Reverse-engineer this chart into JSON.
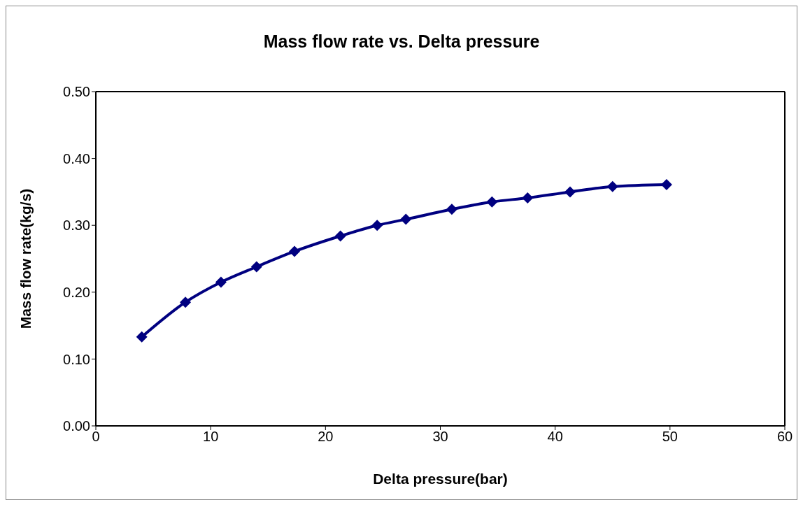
{
  "chart_data": {
    "type": "line",
    "title": "Mass flow rate vs. Delta pressure",
    "xlabel": "Delta pressure(bar)",
    "ylabel": "Mass flow rate(kg/s)",
    "x": [
      4.0,
      7.8,
      10.9,
      14.0,
      17.3,
      21.3,
      24.5,
      27.0,
      31.0,
      34.5,
      37.6,
      41.3,
      45.0,
      49.7
    ],
    "series": [
      {
        "color": "#000080",
        "values": [
          0.133,
          0.185,
          0.215,
          0.238,
          0.261,
          0.284,
          0.3,
          0.309,
          0.324,
          0.335,
          0.341,
          0.35,
          0.358,
          0.361
        ]
      }
    ],
    "xlim": [
      0,
      60
    ],
    "xticks": [
      0,
      10,
      20,
      30,
      40,
      50,
      60
    ],
    "ylim": [
      0,
      0.5
    ],
    "yticks": [
      {
        "value": 0,
        "label": "0.00"
      },
      {
        "value": 0.1,
        "label": "0.10"
      },
      {
        "value": 0.2,
        "label": "0.20"
      },
      {
        "value": 0.3,
        "label": "0.30"
      },
      {
        "value": 0.4,
        "label": "0.40"
      },
      {
        "value": 0.5,
        "label": "0.50"
      }
    ],
    "grid": false,
    "marker": "diamond",
    "line_style": "solid"
  }
}
